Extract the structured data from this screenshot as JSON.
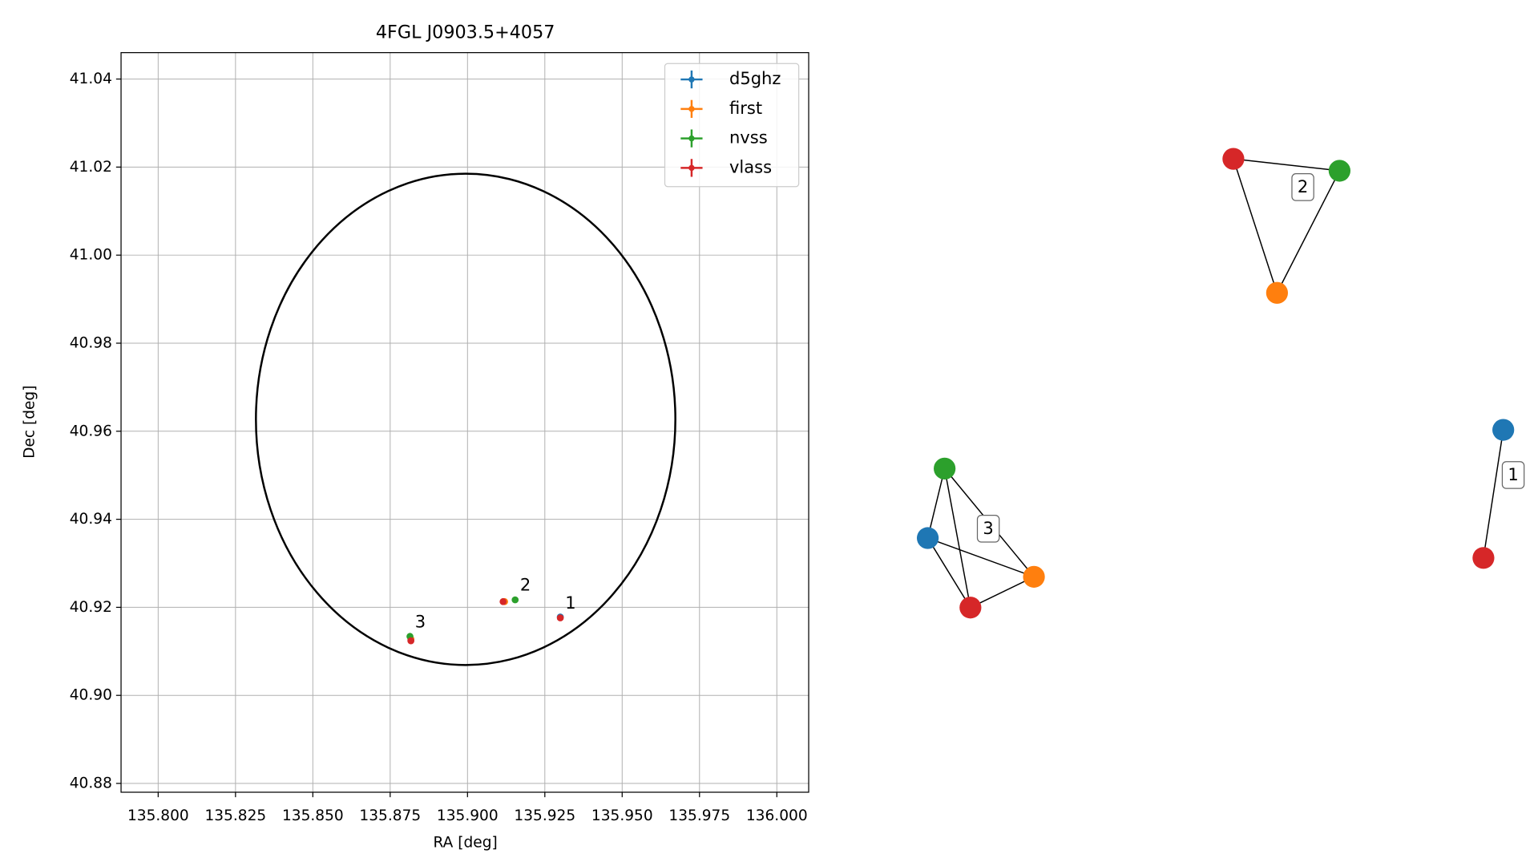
{
  "chart_data": {
    "type": "scatter",
    "title": "4FGL J0903.5+4057",
    "xlabel": "RA [deg]",
    "ylabel": "Dec [deg]",
    "xlim": [
      135.788,
      136.0103
    ],
    "ylim": [
      40.878,
      41.046
    ],
    "xticks": [
      {
        "value": 135.8,
        "label": "135.800"
      },
      {
        "value": 135.825,
        "label": "135.825"
      },
      {
        "value": 135.85,
        "label": "135.850"
      },
      {
        "value": 135.875,
        "label": "135.875"
      },
      {
        "value": 135.9,
        "label": "135.900"
      },
      {
        "value": 135.925,
        "label": "135.925"
      },
      {
        "value": 135.95,
        "label": "135.950"
      },
      {
        "value": 135.975,
        "label": "135.975"
      },
      {
        "value": 136,
        "label": "136.000"
      }
    ],
    "yticks": [
      40.88,
      {
        "value": 40.9,
        "label": "40.90"
      },
      40.92,
      40.94,
      40.96,
      40.98,
      {
        "value": 41,
        "label": "41.00"
      },
      41.02,
      41.04
    ],
    "grid": true,
    "legend": "upper right",
    "ellipse": {
      "center": [
        135.8994,
        40.9627
      ],
      "rx": 0.0678,
      "ry": 0.0558,
      "color": "#000000"
    },
    "series": [
      {
        "name": "d5ghz",
        "color": "#1f77b4",
        "x": [
          135.93,
          135.8817
        ],
        "y": [
          40.9178,
          40.9126
        ]
      },
      {
        "name": "first",
        "color": "#ff7f0e",
        "x": [
          135.912,
          135.8817
        ],
        "y": [
          40.9213,
          40.9128
        ]
      },
      {
        "name": "nvss",
        "color": "#2ca02c",
        "x": [
          135.9154,
          135.8814
        ],
        "y": [
          40.9217,
          40.9134
        ]
      },
      {
        "name": "vlass",
        "color": "#d62728",
        "x": [
          135.9115,
          135.93,
          135.8817
        ],
        "y": [
          40.9213,
          40.9176,
          40.9124
        ]
      }
    ],
    "annotations": [
      {
        "text": "1",
        "x": 135.93,
        "y": 40.9176
      },
      {
        "text": "2",
        "x": 135.9154,
        "y": 40.9217
      },
      {
        "text": "3",
        "x": 135.8814,
        "y": 40.9134
      }
    ]
  },
  "network": {
    "clusters": [
      {
        "label": "1"
      },
      {
        "label": "2"
      },
      {
        "label": "3"
      }
    ]
  }
}
